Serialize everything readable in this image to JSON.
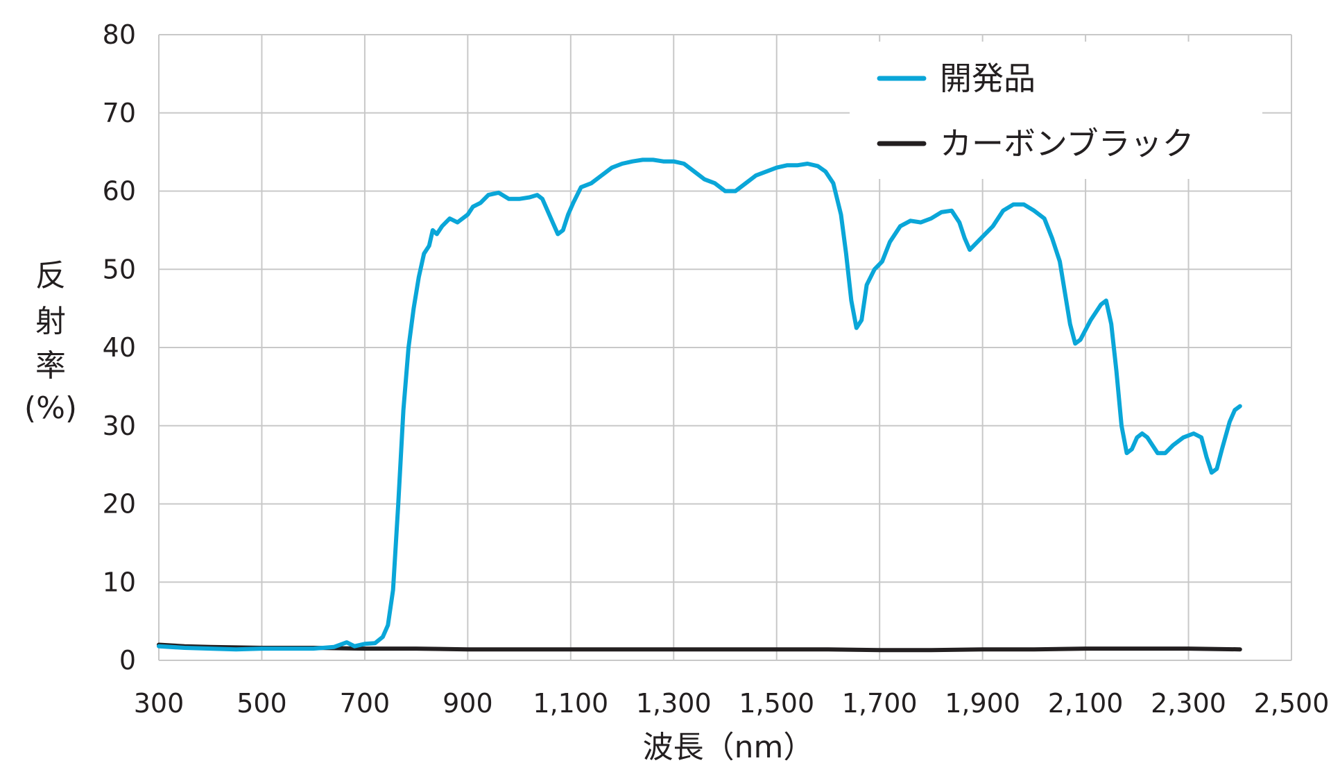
{
  "chart_data": {
    "type": "line",
    "title": "",
    "xlabel": "波長（nm）",
    "ylabel": "反射率(%)",
    "ylabel_lines": [
      "反",
      "射",
      "率",
      "(%)"
    ],
    "xlim": [
      300,
      2500
    ],
    "ylim": [
      0,
      80
    ],
    "x_ticks": [
      300,
      500,
      700,
      900,
      1100,
      1300,
      1500,
      1700,
      1900,
      2100,
      2300,
      2500
    ],
    "x_tick_labels": [
      "300",
      "500",
      "700",
      "900",
      "1,100",
      "1,300",
      "1,500",
      "1,700",
      "1,900",
      "2,100",
      "2,300",
      "2,500"
    ],
    "y_ticks": [
      0,
      10,
      20,
      30,
      40,
      50,
      60,
      70,
      80
    ],
    "y_tick_labels": [
      "0",
      "10",
      "20",
      "30",
      "40",
      "50",
      "60",
      "70",
      "80"
    ],
    "grid": true,
    "legend_position": "top-right",
    "series": [
      {
        "name": "開発品",
        "color": "#0aa6d8",
        "points": [
          [
            300,
            1.8
          ],
          [
            350,
            1.6
          ],
          [
            400,
            1.5
          ],
          [
            450,
            1.4
          ],
          [
            500,
            1.5
          ],
          [
            550,
            1.5
          ],
          [
            600,
            1.5
          ],
          [
            640,
            1.7
          ],
          [
            665,
            2.3
          ],
          [
            680,
            1.8
          ],
          [
            700,
            2.1
          ],
          [
            720,
            2.2
          ],
          [
            735,
            3.0
          ],
          [
            745,
            4.5
          ],
          [
            755,
            9
          ],
          [
            765,
            20
          ],
          [
            775,
            32
          ],
          [
            785,
            40
          ],
          [
            795,
            45
          ],
          [
            805,
            49
          ],
          [
            815,
            52
          ],
          [
            825,
            53
          ],
          [
            832,
            55
          ],
          [
            840,
            54.5
          ],
          [
            850,
            55.5
          ],
          [
            865,
            56.5
          ],
          [
            880,
            56
          ],
          [
            890,
            56.5
          ],
          [
            900,
            57
          ],
          [
            910,
            58
          ],
          [
            925,
            58.5
          ],
          [
            940,
            59.5
          ],
          [
            960,
            59.8
          ],
          [
            980,
            59
          ],
          [
            1000,
            59
          ],
          [
            1020,
            59.2
          ],
          [
            1035,
            59.5
          ],
          [
            1045,
            59
          ],
          [
            1055,
            57.5
          ],
          [
            1065,
            56
          ],
          [
            1075,
            54.5
          ],
          [
            1085,
            55
          ],
          [
            1095,
            57
          ],
          [
            1105,
            58.5
          ],
          [
            1120,
            60.5
          ],
          [
            1140,
            61
          ],
          [
            1160,
            62
          ],
          [
            1180,
            63
          ],
          [
            1200,
            63.5
          ],
          [
            1220,
            63.8
          ],
          [
            1240,
            64
          ],
          [
            1260,
            64
          ],
          [
            1280,
            63.8
          ],
          [
            1300,
            63.8
          ],
          [
            1320,
            63.5
          ],
          [
            1340,
            62.5
          ],
          [
            1360,
            61.5
          ],
          [
            1380,
            61
          ],
          [
            1390,
            60.5
          ],
          [
            1400,
            60
          ],
          [
            1420,
            60
          ],
          [
            1440,
            61
          ],
          [
            1460,
            62
          ],
          [
            1480,
            62.5
          ],
          [
            1500,
            63
          ],
          [
            1520,
            63.3
          ],
          [
            1540,
            63.3
          ],
          [
            1560,
            63.5
          ],
          [
            1580,
            63.2
          ],
          [
            1595,
            62.5
          ],
          [
            1610,
            61
          ],
          [
            1625,
            57
          ],
          [
            1635,
            52
          ],
          [
            1645,
            46
          ],
          [
            1655,
            42.5
          ],
          [
            1665,
            43.5
          ],
          [
            1675,
            48
          ],
          [
            1690,
            50
          ],
          [
            1705,
            51
          ],
          [
            1720,
            53.5
          ],
          [
            1740,
            55.5
          ],
          [
            1760,
            56.2
          ],
          [
            1780,
            56
          ],
          [
            1800,
            56.5
          ],
          [
            1820,
            57.3
          ],
          [
            1840,
            57.5
          ],
          [
            1855,
            56
          ],
          [
            1865,
            54
          ],
          [
            1875,
            52.5
          ],
          [
            1890,
            53.5
          ],
          [
            1905,
            54.5
          ],
          [
            1920,
            55.5
          ],
          [
            1940,
            57.5
          ],
          [
            1960,
            58.3
          ],
          [
            1980,
            58.3
          ],
          [
            2000,
            57.5
          ],
          [
            2020,
            56.5
          ],
          [
            2035,
            54
          ],
          [
            2050,
            51
          ],
          [
            2060,
            47
          ],
          [
            2070,
            43
          ],
          [
            2080,
            40.5
          ],
          [
            2090,
            41
          ],
          [
            2110,
            43.5
          ],
          [
            2130,
            45.5
          ],
          [
            2140,
            46
          ],
          [
            2150,
            43
          ],
          [
            2160,
            37
          ],
          [
            2170,
            30
          ],
          [
            2180,
            26.5
          ],
          [
            2190,
            27
          ],
          [
            2200,
            28.5
          ],
          [
            2210,
            29
          ],
          [
            2220,
            28.5
          ],
          [
            2240,
            26.5
          ],
          [
            2255,
            26.5
          ],
          [
            2270,
            27.5
          ],
          [
            2290,
            28.5
          ],
          [
            2310,
            29
          ],
          [
            2325,
            28.5
          ],
          [
            2335,
            26
          ],
          [
            2345,
            24
          ],
          [
            2355,
            24.5
          ],
          [
            2365,
            27
          ],
          [
            2380,
            30.5
          ],
          [
            2390,
            32
          ],
          [
            2400,
            32.5
          ]
        ]
      },
      {
        "name": "カーボンブラック",
        "color": "#231f20",
        "points": [
          [
            300,
            2.0
          ],
          [
            350,
            1.8
          ],
          [
            400,
            1.7
          ],
          [
            500,
            1.6
          ],
          [
            600,
            1.6
          ],
          [
            700,
            1.5
          ],
          [
            800,
            1.5
          ],
          [
            900,
            1.4
          ],
          [
            1000,
            1.4
          ],
          [
            1100,
            1.4
          ],
          [
            1200,
            1.4
          ],
          [
            1300,
            1.4
          ],
          [
            1400,
            1.4
          ],
          [
            1500,
            1.4
          ],
          [
            1600,
            1.4
          ],
          [
            1700,
            1.3
          ],
          [
            1800,
            1.3
          ],
          [
            1900,
            1.4
          ],
          [
            2000,
            1.4
          ],
          [
            2100,
            1.5
          ],
          [
            2200,
            1.5
          ],
          [
            2300,
            1.5
          ],
          [
            2400,
            1.4
          ]
        ]
      }
    ]
  }
}
